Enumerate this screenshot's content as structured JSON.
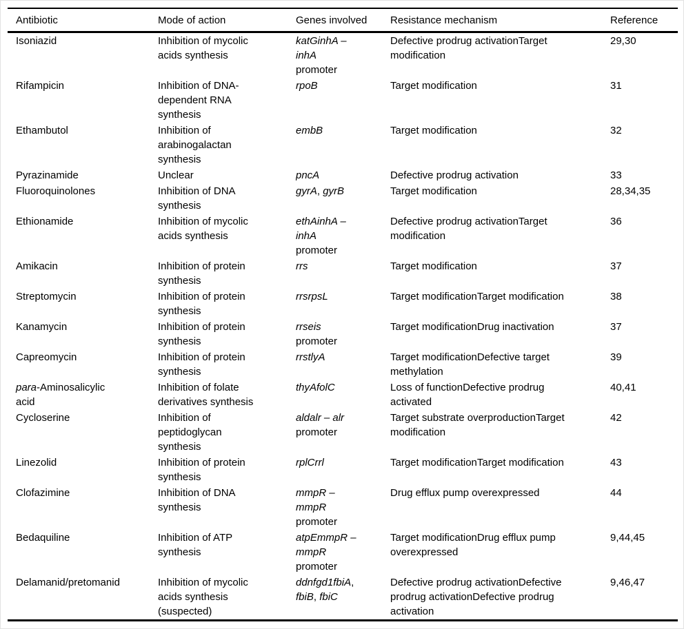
{
  "page": {
    "background": "#ffffff",
    "frame_border_color": "#e2e2e2",
    "rule_color": "#000000",
    "text_color": "#000000"
  },
  "table": {
    "columns": [
      {
        "key": "antibiotic",
        "label": "Antibiotic"
      },
      {
        "key": "mode",
        "label": "Mode of action"
      },
      {
        "key": "genes",
        "label": "Genes involved"
      },
      {
        "key": "mechanism",
        "label": "Resistance mechanism"
      },
      {
        "key": "reference",
        "label": "Reference"
      }
    ],
    "rows": [
      {
        "antibiotic": [
          {
            "t": "Isoniazid"
          }
        ],
        "mode": [
          {
            "t": "Inhibition of mycolic"
          },
          {
            "br": true
          },
          {
            "t": "acids synthesis"
          }
        ],
        "genes": [
          {
            "t": "katGinhA –",
            "i": true
          },
          {
            "br": true
          },
          {
            "t": "inhA",
            "i": true
          },
          {
            "br": true
          },
          {
            "t": "promoter"
          }
        ],
        "mechanism": [
          {
            "t": "Defective prodrug activationTarget"
          },
          {
            "br": true
          },
          {
            "t": "modification"
          }
        ],
        "reference": [
          {
            "t": "29,30"
          }
        ]
      },
      {
        "antibiotic": [
          {
            "t": "Rifampicin"
          }
        ],
        "mode": [
          {
            "t": "Inhibition of DNA-"
          },
          {
            "br": true
          },
          {
            "t": "dependent RNA"
          },
          {
            "br": true
          },
          {
            "t": "synthesis"
          }
        ],
        "genes": [
          {
            "t": "rpoB",
            "i": true
          }
        ],
        "mechanism": [
          {
            "t": "Target modification"
          }
        ],
        "reference": [
          {
            "t": "31"
          }
        ]
      },
      {
        "antibiotic": [
          {
            "t": "Ethambutol"
          }
        ],
        "mode": [
          {
            "t": "Inhibition of"
          },
          {
            "br": true
          },
          {
            "t": "arabinogalactan"
          },
          {
            "br": true
          },
          {
            "t": "synthesis"
          }
        ],
        "genes": [
          {
            "t": "embB",
            "i": true
          }
        ],
        "mechanism": [
          {
            "t": "Target modification"
          }
        ],
        "reference": [
          {
            "t": "32"
          }
        ]
      },
      {
        "antibiotic": [
          {
            "t": "Pyrazinamide"
          }
        ],
        "mode": [
          {
            "t": "Unclear"
          }
        ],
        "genes": [
          {
            "t": "pncA",
            "i": true
          }
        ],
        "mechanism": [
          {
            "t": "Defective prodrug activation"
          }
        ],
        "reference": [
          {
            "t": "33"
          }
        ]
      },
      {
        "antibiotic": [
          {
            "t": "Fluoroquinolones"
          }
        ],
        "mode": [
          {
            "t": "Inhibition of DNA"
          },
          {
            "br": true
          },
          {
            "t": "synthesis"
          }
        ],
        "genes": [
          {
            "t": "gyrA",
            "i": true
          },
          {
            "t": ", "
          },
          {
            "t": "gyrB",
            "i": true
          }
        ],
        "mechanism": [
          {
            "t": "Target modification"
          }
        ],
        "reference": [
          {
            "t": "28,34,35"
          }
        ]
      },
      {
        "antibiotic": [
          {
            "t": "Ethionamide"
          }
        ],
        "mode": [
          {
            "t": "Inhibition of mycolic"
          },
          {
            "br": true
          },
          {
            "t": "acids synthesis"
          }
        ],
        "genes": [
          {
            "t": "ethAinhA –",
            "i": true
          },
          {
            "br": true
          },
          {
            "t": "inhA",
            "i": true
          },
          {
            "br": true
          },
          {
            "t": "promoter"
          }
        ],
        "mechanism": [
          {
            "t": "Defective prodrug activationTarget"
          },
          {
            "br": true
          },
          {
            "t": "modification"
          }
        ],
        "reference": [
          {
            "t": "36"
          }
        ]
      },
      {
        "antibiotic": [
          {
            "t": "Amikacin"
          }
        ],
        "mode": [
          {
            "t": "Inhibition of protein"
          },
          {
            "br": true
          },
          {
            "t": "synthesis"
          }
        ],
        "genes": [
          {
            "t": "rrs",
            "i": true
          }
        ],
        "mechanism": [
          {
            "t": "Target modification"
          }
        ],
        "reference": [
          {
            "t": "37"
          }
        ]
      },
      {
        "antibiotic": [
          {
            "t": "Streptomycin"
          }
        ],
        "mode": [
          {
            "t": "Inhibition of protein"
          },
          {
            "br": true
          },
          {
            "t": "synthesis"
          }
        ],
        "genes": [
          {
            "t": "rrsrpsL",
            "i": true
          }
        ],
        "mechanism": [
          {
            "t": "Target modificationTarget modification"
          }
        ],
        "reference": [
          {
            "t": "38"
          }
        ]
      },
      {
        "antibiotic": [
          {
            "t": "Kanamycin"
          }
        ],
        "mode": [
          {
            "t": "Inhibition of protein"
          },
          {
            "br": true
          },
          {
            "t": "synthesis"
          }
        ],
        "genes": [
          {
            "t": "rrseis",
            "i": true
          },
          {
            "br": true
          },
          {
            "t": "promoter"
          }
        ],
        "mechanism": [
          {
            "t": "Target modificationDrug inactivation"
          }
        ],
        "reference": [
          {
            "t": "37"
          }
        ]
      },
      {
        "antibiotic": [
          {
            "t": "Capreomycin"
          }
        ],
        "mode": [
          {
            "t": "Inhibition of protein"
          },
          {
            "br": true
          },
          {
            "t": "synthesis"
          }
        ],
        "genes": [
          {
            "t": "rrstlyA",
            "i": true
          }
        ],
        "mechanism": [
          {
            "t": "Target modificationDefective target"
          },
          {
            "br": true
          },
          {
            "t": "methylation"
          }
        ],
        "reference": [
          {
            "t": "39"
          }
        ]
      },
      {
        "antibiotic": [
          {
            "t": "para",
            "i": true
          },
          {
            "t": "-Aminosalicylic"
          },
          {
            "br": true
          },
          {
            "t": "acid"
          }
        ],
        "mode": [
          {
            "t": "Inhibition of folate"
          },
          {
            "br": true
          },
          {
            "t": "derivatives synthesis"
          }
        ],
        "genes": [
          {
            "t": "thyAfolC",
            "i": true
          }
        ],
        "mechanism": [
          {
            "t": "Loss of functionDefective prodrug"
          },
          {
            "br": true
          },
          {
            "t": "activated"
          }
        ],
        "reference": [
          {
            "t": "40,41"
          }
        ]
      },
      {
        "antibiotic": [
          {
            "t": "Cycloserine"
          }
        ],
        "mode": [
          {
            "t": "Inhibition of"
          },
          {
            "br": true
          },
          {
            "t": "peptidoglycan"
          },
          {
            "br": true
          },
          {
            "t": "synthesis"
          }
        ],
        "genes": [
          {
            "t": "aldalr – alr",
            "i": true
          },
          {
            "br": true
          },
          {
            "t": "promoter"
          }
        ],
        "mechanism": [
          {
            "t": "Target substrate overproductionTarget"
          },
          {
            "br": true
          },
          {
            "t": "modification"
          }
        ],
        "reference": [
          {
            "t": "42"
          }
        ]
      },
      {
        "antibiotic": [
          {
            "t": "Linezolid"
          }
        ],
        "mode": [
          {
            "t": "Inhibition of protein"
          },
          {
            "br": true
          },
          {
            "t": "synthesis"
          }
        ],
        "genes": [
          {
            "t": "rplCrrl",
            "i": true
          }
        ],
        "mechanism": [
          {
            "t": "Target modificationTarget modification"
          }
        ],
        "reference": [
          {
            "t": "43"
          }
        ]
      },
      {
        "antibiotic": [
          {
            "t": "Clofazimine"
          }
        ],
        "mode": [
          {
            "t": "Inhibition of DNA"
          },
          {
            "br": true
          },
          {
            "t": "synthesis"
          }
        ],
        "genes": [
          {
            "t": "mmpR –",
            "i": true
          },
          {
            "br": true
          },
          {
            "t": "mmpR",
            "i": true
          },
          {
            "br": true
          },
          {
            "t": "promoter"
          }
        ],
        "mechanism": [
          {
            "t": "Drug efflux pump overexpressed"
          }
        ],
        "reference": [
          {
            "t": "44"
          }
        ]
      },
      {
        "antibiotic": [
          {
            "t": "Bedaquiline"
          }
        ],
        "mode": [
          {
            "t": "Inhibition of ATP"
          },
          {
            "br": true
          },
          {
            "t": "synthesis"
          }
        ],
        "genes": [
          {
            "t": "atpEmmpR –",
            "i": true
          },
          {
            "br": true
          },
          {
            "t": "mmpR",
            "i": true
          },
          {
            "br": true
          },
          {
            "t": "promoter"
          }
        ],
        "mechanism": [
          {
            "t": "Target modificationDrug efflux pump"
          },
          {
            "br": true
          },
          {
            "t": "overexpressed"
          }
        ],
        "reference": [
          {
            "t": "9,44,45"
          }
        ]
      },
      {
        "antibiotic": [
          {
            "t": "Delamanid/pretomanid"
          }
        ],
        "mode": [
          {
            "t": "Inhibition of mycolic"
          },
          {
            "br": true
          },
          {
            "t": "acids synthesis"
          },
          {
            "br": true
          },
          {
            "t": "(suspected)"
          }
        ],
        "genes": [
          {
            "t": "ddnfgd1fbiA",
            "i": true
          },
          {
            "t": ","
          },
          {
            "br": true
          },
          {
            "t": "fbiB",
            "i": true
          },
          {
            "t": ", "
          },
          {
            "t": "fbiC",
            "i": true
          }
        ],
        "mechanism": [
          {
            "t": "Defective prodrug activationDefective"
          },
          {
            "br": true
          },
          {
            "t": "prodrug activationDefective prodrug"
          },
          {
            "br": true
          },
          {
            "t": "activation"
          }
        ],
        "reference": [
          {
            "t": "9,46,47"
          }
        ]
      }
    ]
  }
}
